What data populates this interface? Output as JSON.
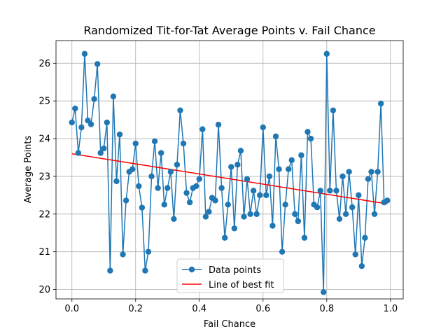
{
  "chart_data": {
    "type": "line",
    "title": "Randomized Tit-for-Tat Average Points v. Fail Chance",
    "xlabel": "Fail Chance",
    "ylabel": "Average Points",
    "xlim": [
      -0.05,
      1.04
    ],
    "ylim": [
      19.75,
      26.6
    ],
    "xticks": [
      0.0,
      0.2,
      0.4,
      0.6,
      0.8,
      1.0
    ],
    "xtick_labels": [
      "0.0",
      "0.2",
      "0.4",
      "0.6",
      "0.8",
      "1.0"
    ],
    "yticks": [
      20,
      21,
      22,
      23,
      24,
      25,
      26
    ],
    "ytick_labels": [
      "20",
      "21",
      "22",
      "23",
      "24",
      "25",
      "26"
    ],
    "grid": true,
    "legend_position": "bottom-center",
    "series": [
      {
        "name": "Data points",
        "color": "#1f77b4",
        "marker": "circle",
        "x": [
          0.0,
          0.01,
          0.02,
          0.03,
          0.04,
          0.05,
          0.06,
          0.07,
          0.08,
          0.09,
          0.1,
          0.11,
          0.12,
          0.13,
          0.14,
          0.15,
          0.16,
          0.17,
          0.18,
          0.19,
          0.2,
          0.21,
          0.22,
          0.23,
          0.24,
          0.25,
          0.26,
          0.27,
          0.28,
          0.29,
          0.3,
          0.31,
          0.32,
          0.33,
          0.34,
          0.35,
          0.36,
          0.37,
          0.38,
          0.39,
          0.4,
          0.41,
          0.42,
          0.43,
          0.44,
          0.45,
          0.46,
          0.47,
          0.48,
          0.49,
          0.5,
          0.51,
          0.52,
          0.53,
          0.54,
          0.55,
          0.56,
          0.57,
          0.58,
          0.59,
          0.6,
          0.61,
          0.62,
          0.63,
          0.64,
          0.65,
          0.66,
          0.67,
          0.68,
          0.69,
          0.7,
          0.71,
          0.72,
          0.73,
          0.74,
          0.75,
          0.76,
          0.77,
          0.78,
          0.79,
          0.8,
          0.81,
          0.82,
          0.83,
          0.84,
          0.85,
          0.86,
          0.87,
          0.88,
          0.89,
          0.9,
          0.91,
          0.92,
          0.93,
          0.94,
          0.95,
          0.96,
          0.97,
          0.98,
          0.99
        ],
        "y": [
          24.43,
          24.8,
          23.62,
          24.3,
          26.25,
          24.48,
          24.38,
          25.05,
          25.98,
          23.62,
          23.74,
          24.43,
          20.5,
          25.12,
          22.87,
          24.11,
          20.93,
          22.36,
          23.12,
          23.19,
          23.87,
          22.74,
          22.17,
          20.5,
          21.0,
          23.0,
          23.93,
          22.69,
          23.62,
          22.25,
          22.69,
          23.12,
          21.87,
          23.31,
          24.75,
          23.87,
          22.56,
          22.31,
          22.69,
          22.74,
          22.93,
          24.25,
          21.93,
          22.06,
          22.43,
          22.36,
          24.37,
          22.69,
          21.37,
          22.25,
          23.25,
          21.62,
          23.31,
          23.68,
          21.93,
          22.93,
          22.0,
          22.62,
          22.0,
          22.5,
          24.3,
          22.5,
          23.0,
          21.69,
          24.06,
          23.19,
          21.0,
          22.25,
          23.19,
          23.43,
          22.0,
          21.81,
          23.56,
          21.37,
          24.18,
          24.0,
          22.25,
          22.18,
          22.62,
          19.93,
          26.25,
          22.62,
          24.75,
          22.62,
          21.87,
          23.0,
          22.0,
          23.12,
          22.18,
          20.93,
          22.5,
          20.62,
          21.37,
          22.93,
          23.12,
          22.0,
          23.12,
          24.93,
          22.31,
          22.36
        ]
      },
      {
        "name": "Line of best fit",
        "color": "#ff0000",
        "x": [
          0.0,
          0.99
        ],
        "y": [
          23.6,
          22.27
        ]
      }
    ]
  }
}
